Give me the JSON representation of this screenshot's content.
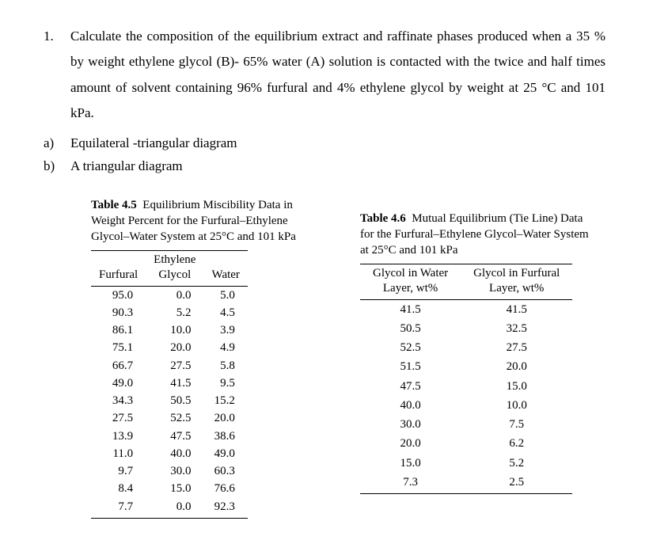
{
  "problem": {
    "number": "1.",
    "text": "Calculate the composition of the equilibrium extract and raffinate phases produced when a 35 % by weight ethylene glycol (B)- 65% water (A) solution is contacted with the twice and half times amount of solvent containing 96% furfural and 4% ethylene glycol by weight at 25 °C and 101 kPa."
  },
  "sub_a": {
    "label": "a)",
    "text": "Equilateral -triangular diagram"
  },
  "sub_b": {
    "label": "b)",
    "text": "A triangular diagram"
  },
  "table45": {
    "title_bold": "Table 4.5",
    "title_rest": "Equilibrium Miscibility Data in Weight Percent for the Furfural–Ethylene Glycol–Water System at 25°C and 101 kPa",
    "headers": {
      "c1": "Furfural",
      "c2a": "Ethylene",
      "c2b": "Glycol",
      "c3": "Water"
    },
    "rows": [
      {
        "c1": "95.0",
        "c2": "0.0",
        "c3": "5.0"
      },
      {
        "c1": "90.3",
        "c2": "5.2",
        "c3": "4.5"
      },
      {
        "c1": "86.1",
        "c2": "10.0",
        "c3": "3.9"
      },
      {
        "c1": "75.1",
        "c2": "20.0",
        "c3": "4.9"
      },
      {
        "c1": "66.7",
        "c2": "27.5",
        "c3": "5.8"
      },
      {
        "c1": "49.0",
        "c2": "41.5",
        "c3": "9.5"
      },
      {
        "c1": "34.3",
        "c2": "50.5",
        "c3": "15.2"
      },
      {
        "c1": "27.5",
        "c2": "52.5",
        "c3": "20.0"
      },
      {
        "c1": "13.9",
        "c2": "47.5",
        "c3": "38.6"
      },
      {
        "c1": "11.0",
        "c2": "40.0",
        "c3": "49.0"
      },
      {
        "c1": "9.7",
        "c2": "30.0",
        "c3": "60.3"
      },
      {
        "c1": "8.4",
        "c2": "15.0",
        "c3": "76.6"
      },
      {
        "c1": "7.7",
        "c2": "0.0",
        "c3": "92.3"
      }
    ]
  },
  "table46": {
    "title_bold": "Table 4.6",
    "title_rest": "Mutual Equilibrium (Tie Line) Data for the Furfural–Ethylene Glycol–Water System at 25°C and 101 kPa",
    "headers": {
      "c1a": "Glycol in Water",
      "c1b": "Layer, wt%",
      "c2a": "Glycol in Furfural",
      "c2b": "Layer, wt%"
    },
    "rows": [
      {
        "c1": "41.5",
        "c2": "41.5"
      },
      {
        "c1": "50.5",
        "c2": "32.5"
      },
      {
        "c1": "52.5",
        "c2": "27.5"
      },
      {
        "c1": "51.5",
        "c2": "20.0"
      },
      {
        "c1": "47.5",
        "c2": "15.0"
      },
      {
        "c1": "40.0",
        "c2": "10.0"
      },
      {
        "c1": "30.0",
        "c2": "7.5"
      },
      {
        "c1": "20.0",
        "c2": "6.2"
      },
      {
        "c1": "15.0",
        "c2": "5.2"
      },
      {
        "c1": "7.3",
        "c2": "2.5"
      }
    ]
  }
}
